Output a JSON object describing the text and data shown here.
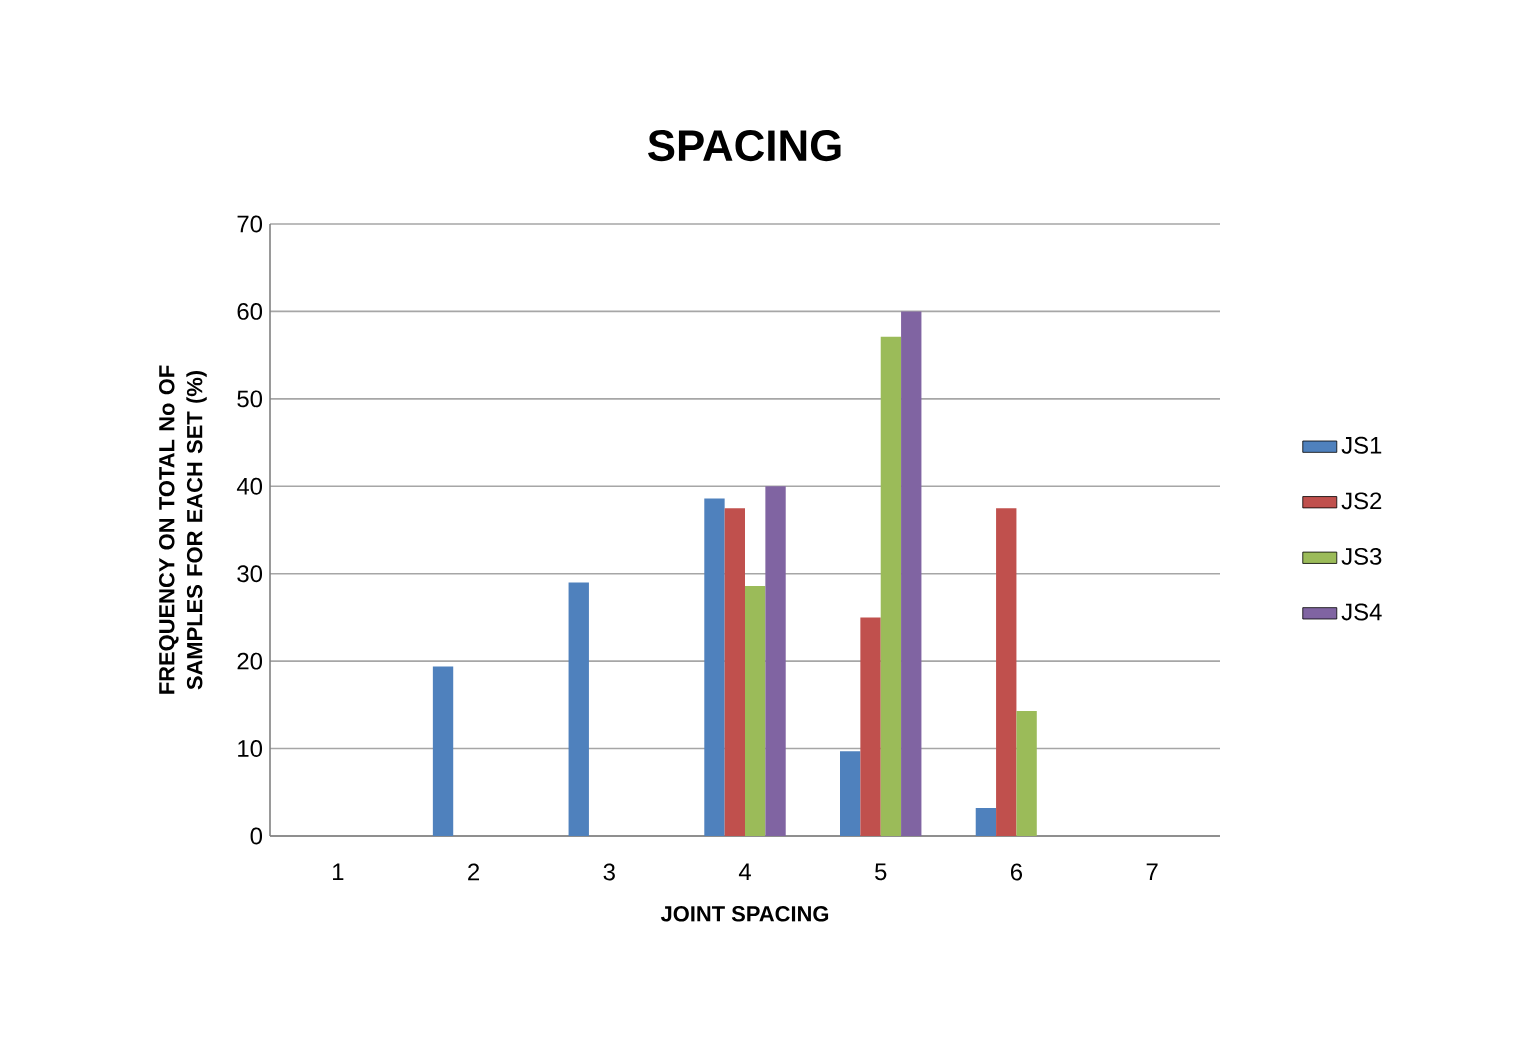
{
  "chart_data": {
    "type": "bar",
    "title": "SPACING",
    "xlabel": "JOINT SPACING",
    "ylabel": "FREQUENCY ON TOTAL No OF SAMPLES FOR EACH SET (%)",
    "categories": [
      "1",
      "2",
      "3",
      "4",
      "5",
      "6",
      "7"
    ],
    "series": [
      {
        "name": "JS1",
        "color": "#4f81bd",
        "values": [
          0,
          19.4,
          29,
          38.6,
          9.7,
          3.2,
          0
        ]
      },
      {
        "name": "JS2",
        "color": "#c0504d",
        "values": [
          0,
          0,
          0,
          37.5,
          25,
          37.5,
          0
        ]
      },
      {
        "name": "JS3",
        "color": "#9bbb59",
        "values": [
          0,
          0,
          0,
          28.6,
          57.1,
          14.3,
          0
        ]
      },
      {
        "name": "JS4",
        "color": "#8064a2",
        "values": [
          0,
          0,
          0,
          40,
          60,
          0,
          0
        ]
      }
    ],
    "ylim": [
      0,
      70
    ],
    "yticks": [
      0,
      10,
      20,
      30,
      40,
      50,
      60,
      70
    ],
    "grid": "y",
    "legend": "right"
  }
}
